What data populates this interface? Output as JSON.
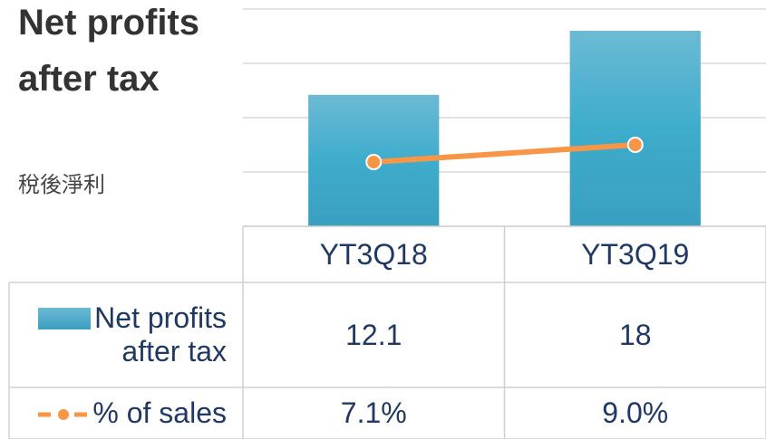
{
  "chart_data": {
    "type": "bar",
    "title": "Net profits after tax",
    "subtitle": "稅後淨利",
    "categories": [
      "YT3Q18",
      "YT3Q19"
    ],
    "series": [
      {
        "name": "Net profits after tax",
        "type": "bar",
        "color": "#3ea8c8",
        "values": [
          12.1,
          18.0
        ]
      },
      {
        "name": "% of sales",
        "type": "line",
        "axis": "y2",
        "color": "#f79646",
        "values": [
          7.1,
          9.0
        ],
        "value_labels": [
          "7.1%",
          "9.0%"
        ]
      }
    ],
    "ylim": [
      0,
      20
    ],
    "yticks": [
      0,
      5,
      10,
      15,
      20
    ],
    "y2lim": [
      0,
      24
    ],
    "grid": true
  }
}
